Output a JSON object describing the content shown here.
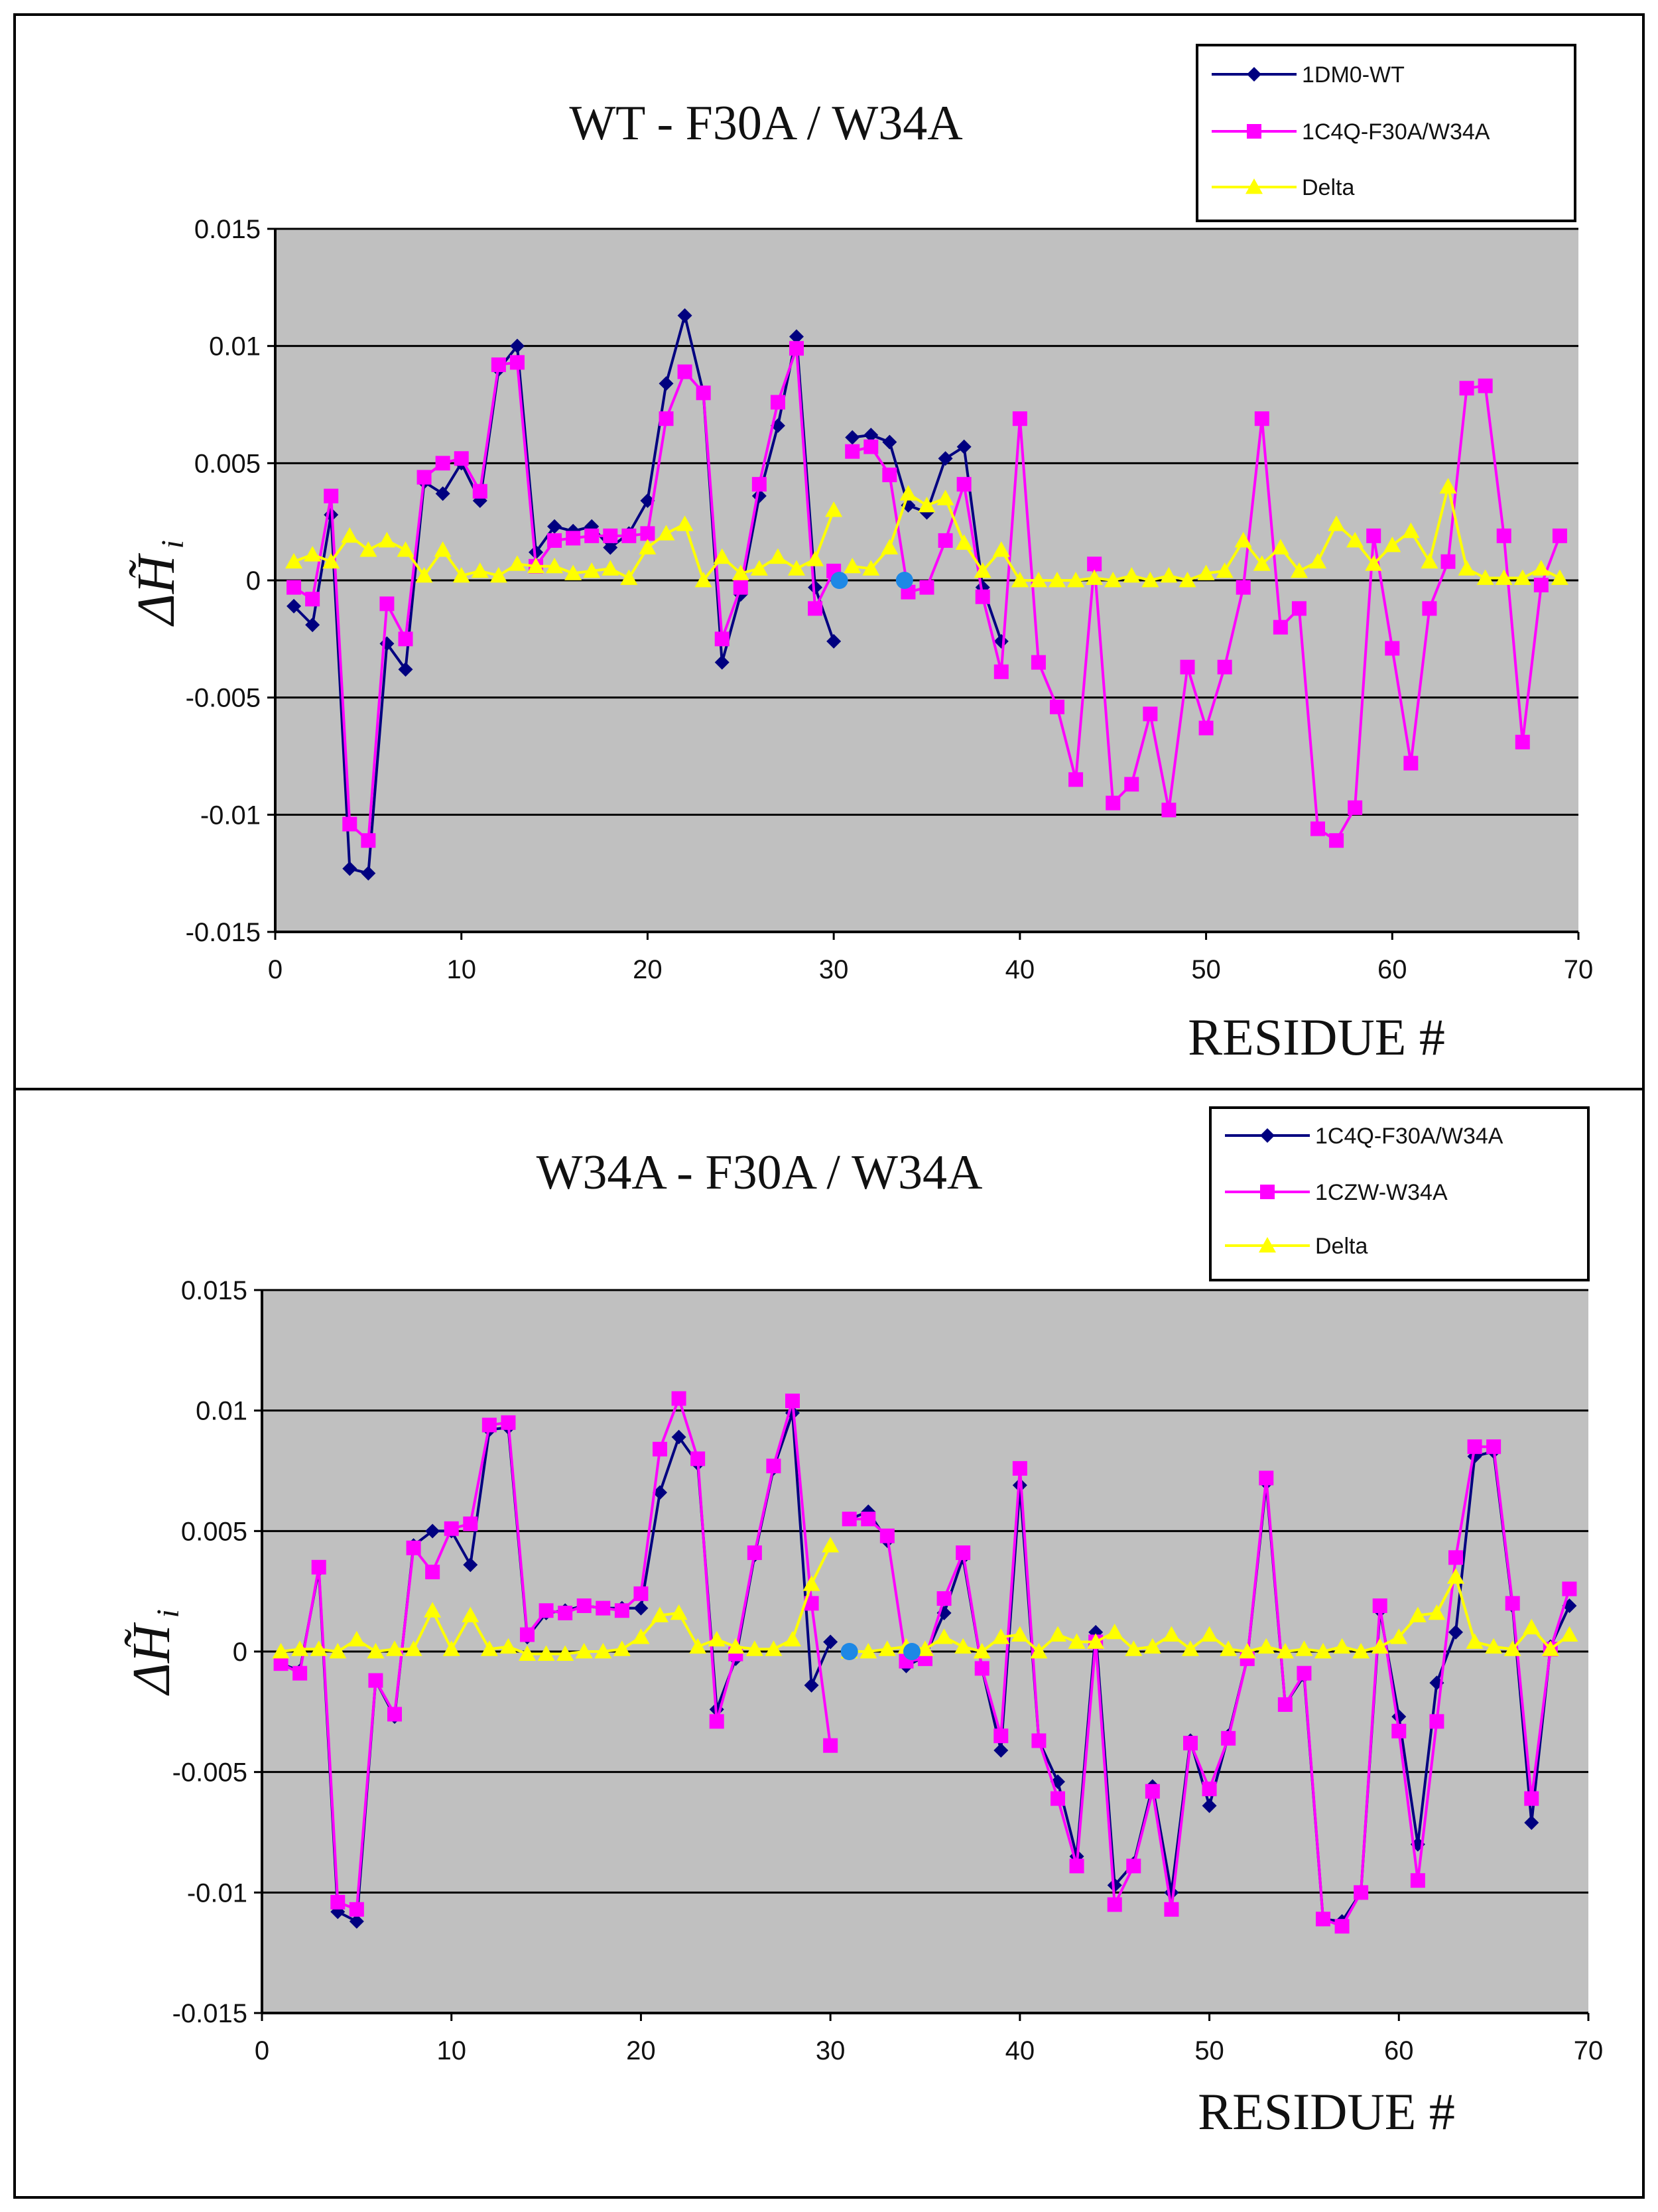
{
  "chart_data": [
    {
      "type": "line",
      "title": "WT  -  F30A / W34A",
      "xlabel": "RESIDUE #",
      "ylabel": "ΔH̃",
      "ylabel_sub": "i",
      "xlim": [
        0,
        70
      ],
      "ylim": [
        -0.015,
        0.015
      ],
      "xticks": [
        0,
        10,
        20,
        30,
        40,
        50,
        60,
        70
      ],
      "yticks": [
        -0.015,
        -0.01,
        -0.005,
        0,
        0.005,
        0.01,
        0.015
      ],
      "ytick_labels": [
        "-0.015",
        "-0.01",
        "-0.005",
        "0",
        "0.005",
        "0.01",
        "0.015"
      ],
      "legend_position": "top-right",
      "colors": {
        "plot_bg": "#c0c0c0",
        "gridline": "#000000",
        "highlight": "#1e88e5"
      },
      "highlight_points": [
        {
          "x": 30.3,
          "y": 0.0
        },
        {
          "x": 33.8,
          "y": 0.0
        }
      ],
      "series": [
        {
          "name": "1DM0-WT",
          "color": "#000080",
          "marker": "diamond",
          "x": [
            1,
            2,
            3,
            4,
            5,
            6,
            7,
            8,
            9,
            10,
            11,
            12,
            13,
            14,
            15,
            16,
            17,
            18,
            19,
            20,
            21,
            22,
            23,
            24,
            25,
            26,
            27,
            28,
            29,
            30,
            null,
            31,
            32,
            33,
            34,
            35,
            36,
            37,
            38,
            39
          ],
          "y": [
            -0.0011,
            -0.0019,
            0.0028,
            -0.0123,
            -0.0125,
            -0.0027,
            -0.0038,
            0.0042,
            0.0037,
            0.005,
            0.0034,
            0.009,
            0.01,
            0.0012,
            0.0023,
            0.0021,
            0.0023,
            0.0014,
            0.002,
            0.0034,
            0.0084,
            0.0113,
            0.008,
            -0.0035,
            -0.0006,
            0.0036,
            0.0066,
            0.0104,
            -0.0003,
            -0.0026,
            null,
            0.0061,
            0.0062,
            0.0059,
            0.0032,
            0.0029,
            0.0052,
            0.0057,
            -0.0003,
            -0.0026
          ]
        },
        {
          "name": "1C4Q-F30A/W34A",
          "color": "#ff00ff",
          "marker": "square",
          "x": [
            1,
            2,
            3,
            4,
            5,
            6,
            7,
            8,
            9,
            10,
            11,
            12,
            13,
            14,
            15,
            16,
            17,
            18,
            19,
            20,
            21,
            22,
            23,
            24,
            25,
            26,
            27,
            28,
            29,
            30,
            null,
            31,
            32,
            33,
            34,
            35,
            36,
            37,
            38,
            39,
            40,
            41,
            42,
            43,
            44,
            45,
            46,
            47,
            48,
            49,
            50,
            51,
            52,
            53,
            54,
            55,
            56,
            57,
            58,
            59,
            60,
            61,
            62,
            63,
            64,
            65,
            66,
            67,
            68,
            69
          ],
          "y": [
            -0.0003,
            -0.0008,
            0.0036,
            -0.0104,
            -0.0111,
            -0.001,
            -0.0025,
            0.0044,
            0.005,
            0.0052,
            0.0038,
            0.0092,
            0.0093,
            0.0006,
            0.0017,
            0.0018,
            0.0019,
            0.0019,
            0.0019,
            0.002,
            0.0069,
            0.0089,
            0.008,
            -0.0025,
            -0.0003,
            0.0041,
            0.0076,
            0.0099,
            -0.0012,
            0.0004,
            null,
            0.0055,
            0.0057,
            0.0045,
            -0.0005,
            -0.0003,
            0.0017,
            0.0041,
            -0.0007,
            -0.0039,
            0.0069,
            -0.0035,
            -0.0054,
            -0.0085,
            0.0007,
            -0.0095,
            -0.0087,
            -0.0057,
            -0.0098,
            -0.0037,
            -0.0063,
            -0.0037,
            -0.0003,
            0.0069,
            -0.002,
            -0.0012,
            -0.0106,
            -0.0111,
            -0.0097,
            0.0019,
            -0.0029,
            -0.0078,
            -0.0012,
            0.0008,
            0.0082,
            0.0083,
            0.0019,
            -0.0069,
            -0.0002,
            0.0019
          ]
        },
        {
          "name": "Delta",
          "color": "#ffff00",
          "marker": "triangle",
          "x": [
            1,
            2,
            3,
            4,
            5,
            6,
            7,
            8,
            9,
            10,
            11,
            12,
            13,
            14,
            15,
            16,
            17,
            18,
            19,
            20,
            21,
            22,
            23,
            24,
            25,
            26,
            27,
            28,
            29,
            30,
            null,
            31,
            32,
            33,
            34,
            35,
            36,
            37,
            38,
            39,
            40,
            41,
            42,
            43,
            44,
            45,
            46,
            47,
            48,
            49,
            50,
            51,
            52,
            53,
            54,
            55,
            56,
            57,
            58,
            59,
            60,
            61,
            62,
            63,
            64,
            65,
            66,
            67,
            68,
            69
          ],
          "y": [
            0.0008,
            0.0011,
            0.0008,
            0.0019,
            0.0013,
            0.0017,
            0.0013,
            0.0002,
            0.0013,
            0.0002,
            0.0004,
            0.0002,
            0.0007,
            0.0006,
            0.0006,
            0.0003,
            0.0004,
            0.0005,
            0.0001,
            0.0014,
            0.002,
            0.0024,
            0.0,
            0.001,
            0.0003,
            0.0005,
            0.001,
            0.0005,
            0.0009,
            0.003,
            null,
            0.0006,
            0.0005,
            0.0014,
            0.0037,
            0.0032,
            0.0035,
            0.0016,
            0.0004,
            0.0013,
            0.0,
            0.0,
            0.0,
            0.0,
            0.0001,
            0.0,
            0.0002,
            0.0,
            0.0002,
            0.0,
            0.0003,
            0.0004,
            0.0017,
            0.0007,
            0.0014,
            0.0004,
            0.0008,
            0.0024,
            0.0017,
            0.0007,
            0.0015,
            0.0021,
            0.0008,
            0.004,
            0.0005,
            0.0001,
            0.0001,
            0.0001,
            0.0005,
            0.0001
          ]
        }
      ]
    },
    {
      "type": "line",
      "title": "W34A  -  F30A / W34A",
      "xlabel": "RESIDUE #",
      "ylabel": "ΔH̃",
      "ylabel_sub": "i",
      "xlim": [
        0,
        70
      ],
      "ylim": [
        -0.015,
        0.015
      ],
      "xticks": [
        0,
        10,
        20,
        30,
        40,
        50,
        60,
        70
      ],
      "yticks": [
        -0.015,
        -0.01,
        -0.005,
        0,
        0.005,
        0.01,
        0.015
      ],
      "ytick_labels": [
        "-0.015",
        "-0.01",
        "-0.005",
        "0",
        "0.005",
        "0.01",
        "0.015"
      ],
      "legend_position": "top-right",
      "colors": {
        "plot_bg": "#c0c0c0",
        "gridline": "#000000",
        "highlight": "#1e88e5"
      },
      "highlight_points": [
        {
          "x": 31.0,
          "y": 0.0
        },
        {
          "x": 34.3,
          "y": 0.0
        }
      ],
      "series": [
        {
          "name": "1C4Q-F30A/W34A",
          "color": "#000080",
          "marker": "diamond",
          "x": [
            1,
            2,
            3,
            4,
            5,
            6,
            7,
            8,
            9,
            10,
            11,
            12,
            13,
            14,
            15,
            16,
            17,
            18,
            19,
            20,
            21,
            22,
            23,
            24,
            25,
            26,
            27,
            28,
            29,
            30,
            null,
            31,
            32,
            33,
            null,
            34,
            35,
            36,
            37,
            38,
            39,
            40,
            41,
            42,
            43,
            44,
            45,
            46,
            47,
            48,
            49,
            50,
            51,
            52,
            53,
            54,
            55,
            56,
            57,
            58,
            59,
            60,
            61,
            62,
            63,
            64,
            65,
            66,
            67,
            68,
            69
          ],
          "y": [
            -0.0005,
            -0.0008,
            0.0034,
            -0.0108,
            -0.0112,
            -0.0012,
            -0.0027,
            0.0044,
            0.005,
            0.005,
            0.0036,
            0.0092,
            0.0093,
            0.0006,
            0.0016,
            0.0017,
            0.0019,
            0.0018,
            0.0018,
            0.0018,
            0.0066,
            0.0089,
            0.0078,
            -0.0024,
            -0.0003,
            0.004,
            0.0076,
            0.0099,
            -0.0014,
            0.0004,
            null,
            0.0055,
            0.0058,
            0.0046,
            null,
            -0.0006,
            -0.0002,
            0.0016,
            0.0039,
            -0.0007,
            -0.0041,
            0.0069,
            -0.0037,
            -0.0054,
            -0.0085,
            0.0008,
            -0.0097,
            -0.0088,
            -0.0056,
            -0.01,
            -0.0037,
            -0.0064,
            -0.0035,
            -0.0003,
            0.007,
            -0.0022,
            -0.001,
            -0.0111,
            -0.0112,
            -0.01,
            0.0017,
            -0.0027,
            -0.008,
            -0.0013,
            0.0008,
            0.0081,
            0.0083,
            0.0019,
            -0.0071,
            0.0002,
            0.0019
          ]
        },
        {
          "name": "1CZW-W34A",
          "color": "#ff00ff",
          "marker": "square",
          "x": [
            1,
            2,
            3,
            4,
            5,
            6,
            7,
            8,
            9,
            10,
            11,
            12,
            13,
            14,
            15,
            16,
            17,
            18,
            19,
            20,
            21,
            22,
            23,
            24,
            25,
            26,
            27,
            28,
            29,
            30,
            null,
            31,
            32,
            33,
            34,
            35,
            36,
            37,
            38,
            39,
            40,
            41,
            42,
            43,
            44,
            45,
            46,
            47,
            48,
            49,
            50,
            51,
            52,
            53,
            54,
            55,
            56,
            57,
            58,
            59,
            60,
            61,
            62,
            63,
            64,
            65,
            66,
            67,
            68,
            69
          ],
          "y": [
            -0.0005,
            -0.0009,
            0.0035,
            -0.0104,
            -0.0107,
            -0.0012,
            -0.0026,
            0.0043,
            0.0033,
            0.0051,
            0.0053,
            0.0094,
            0.0095,
            0.0007,
            0.0017,
            0.0016,
            0.0019,
            0.0018,
            0.0017,
            0.0024,
            0.0084,
            0.0105,
            0.008,
            -0.0029,
            -0.0001,
            0.0041,
            0.0077,
            0.0104,
            0.002,
            -0.0039,
            null,
            0.0055,
            0.0055,
            0.0048,
            -0.0004,
            -0.0003,
            0.0022,
            0.0041,
            -0.0007,
            -0.0035,
            0.0076,
            -0.0037,
            -0.0061,
            -0.0089,
            0.0004,
            -0.0105,
            -0.0089,
            -0.0058,
            -0.0107,
            -0.0038,
            -0.0057,
            -0.0036,
            -0.0003,
            0.0072,
            -0.0022,
            -0.0009,
            -0.0111,
            -0.0114,
            -0.01,
            0.0019,
            -0.0033,
            -0.0095,
            -0.0029,
            0.0039,
            0.0085,
            0.0085,
            0.002,
            -0.0061,
            0.0001,
            0.0026
          ]
        },
        {
          "name": "Delta",
          "color": "#ffff00",
          "marker": "triangle",
          "x": [
            1,
            2,
            3,
            4,
            5,
            6,
            7,
            8,
            9,
            10,
            11,
            12,
            13,
            14,
            15,
            16,
            17,
            18,
            19,
            20,
            21,
            22,
            23,
            24,
            25,
            26,
            27,
            28,
            29,
            30,
            null,
            31,
            32,
            33,
            34,
            35,
            36,
            37,
            38,
            39,
            40,
            41,
            42,
            43,
            44,
            45,
            46,
            47,
            48,
            49,
            50,
            51,
            52,
            53,
            54,
            55,
            56,
            57,
            58,
            59,
            60,
            61,
            62,
            63,
            64,
            65,
            66,
            67,
            68,
            69
          ],
          "y": [
            0.0,
            0.0001,
            0.0001,
            0.0,
            0.0005,
            0.0,
            0.0001,
            0.0001,
            0.0017,
            0.0001,
            0.0015,
            0.0001,
            0.0002,
            -0.0001,
            -0.0001,
            -0.0001,
            0.0,
            0.0,
            0.0001,
            0.0006,
            0.0015,
            0.0016,
            0.0002,
            0.0005,
            0.0002,
            0.0001,
            0.0001,
            0.0005,
            0.0028,
            0.0044,
            null,
            0.0,
            0.0,
            0.0001,
            0.0002,
            0.0001,
            0.0006,
            0.0002,
            0.0,
            0.0006,
            0.0007,
            0.0,
            0.0007,
            0.0004,
            0.0004,
            0.0008,
            0.0001,
            0.0002,
            0.0007,
            0.0001,
            0.0007,
            0.0001,
            0.0,
            0.0002,
            0.0,
            0.0001,
            0.0,
            0.0002,
            0.0,
            0.0002,
            0.0006,
            0.0015,
            0.0016,
            0.0031,
            0.0004,
            0.0002,
            0.0001,
            0.001,
            0.0001,
            0.0007
          ]
        }
      ]
    }
  ]
}
